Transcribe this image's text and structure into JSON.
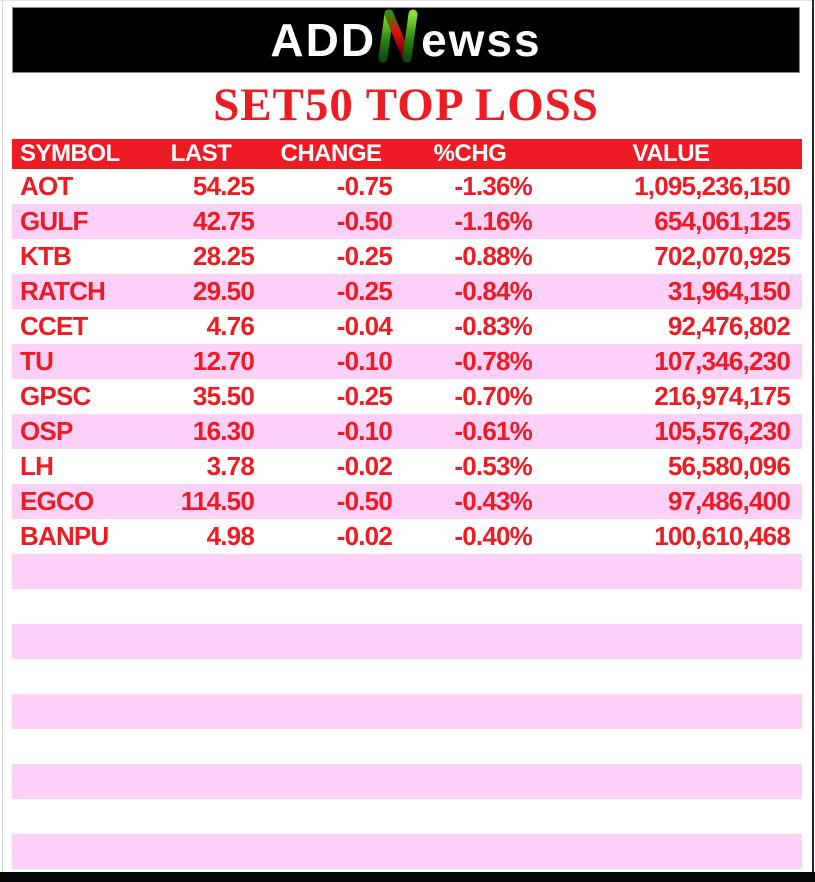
{
  "banner": {
    "logo_pre": "ADD",
    "logo_post": "ewss"
  },
  "title": "SET50 TOP LOSS",
  "colors": {
    "banner_bg": "#000000",
    "header_bg": "#ED1C24",
    "text_red": "#ED1C24",
    "row_pink": "#FDD0F8",
    "logo_green_light": "#8BE03C",
    "logo_green_dark": "#0F4D0C",
    "logo_red": "#E01010"
  },
  "chart_data": {
    "type": "table",
    "title": "SET50 TOP LOSS",
    "columns": [
      "SYMBOL",
      "LAST",
      "CHANGE",
      "%CHG",
      "VALUE"
    ],
    "rows": [
      {
        "symbol": "AOT",
        "last": "54.25",
        "change": "-0.75",
        "pct_chg": "-1.36%",
        "value": "1,095,236,150"
      },
      {
        "symbol": "GULF",
        "last": "42.75",
        "change": "-0.50",
        "pct_chg": "-1.16%",
        "value": "654,061,125"
      },
      {
        "symbol": "KTB",
        "last": "28.25",
        "change": "-0.25",
        "pct_chg": "-0.88%",
        "value": "702,070,925"
      },
      {
        "symbol": "RATCH",
        "last": "29.50",
        "change": "-0.25",
        "pct_chg": "-0.84%",
        "value": "31,964,150"
      },
      {
        "symbol": "CCET",
        "last": "4.76",
        "change": "-0.04",
        "pct_chg": "-0.83%",
        "value": "92,476,802"
      },
      {
        "symbol": "TU",
        "last": "12.70",
        "change": "-0.10",
        "pct_chg": "-0.78%",
        "value": "107,346,230"
      },
      {
        "symbol": "GPSC",
        "last": "35.50",
        "change": "-0.25",
        "pct_chg": "-0.70%",
        "value": "216,974,175"
      },
      {
        "symbol": "OSP",
        "last": "16.30",
        "change": "-0.10",
        "pct_chg": "-0.61%",
        "value": "105,576,230"
      },
      {
        "symbol": "LH",
        "last": "3.78",
        "change": "-0.02",
        "pct_chg": "-0.53%",
        "value": "56,580,096"
      },
      {
        "symbol": "EGCO",
        "last": "114.50",
        "change": "-0.50",
        "pct_chg": "-0.43%",
        "value": "97,486,400"
      },
      {
        "symbol": "BANPU",
        "last": "4.98",
        "change": "-0.02",
        "pct_chg": "-0.40%",
        "value": "100,610,468"
      }
    ],
    "empty_rows": 9,
    "legend_position": "none",
    "grid": false
  }
}
